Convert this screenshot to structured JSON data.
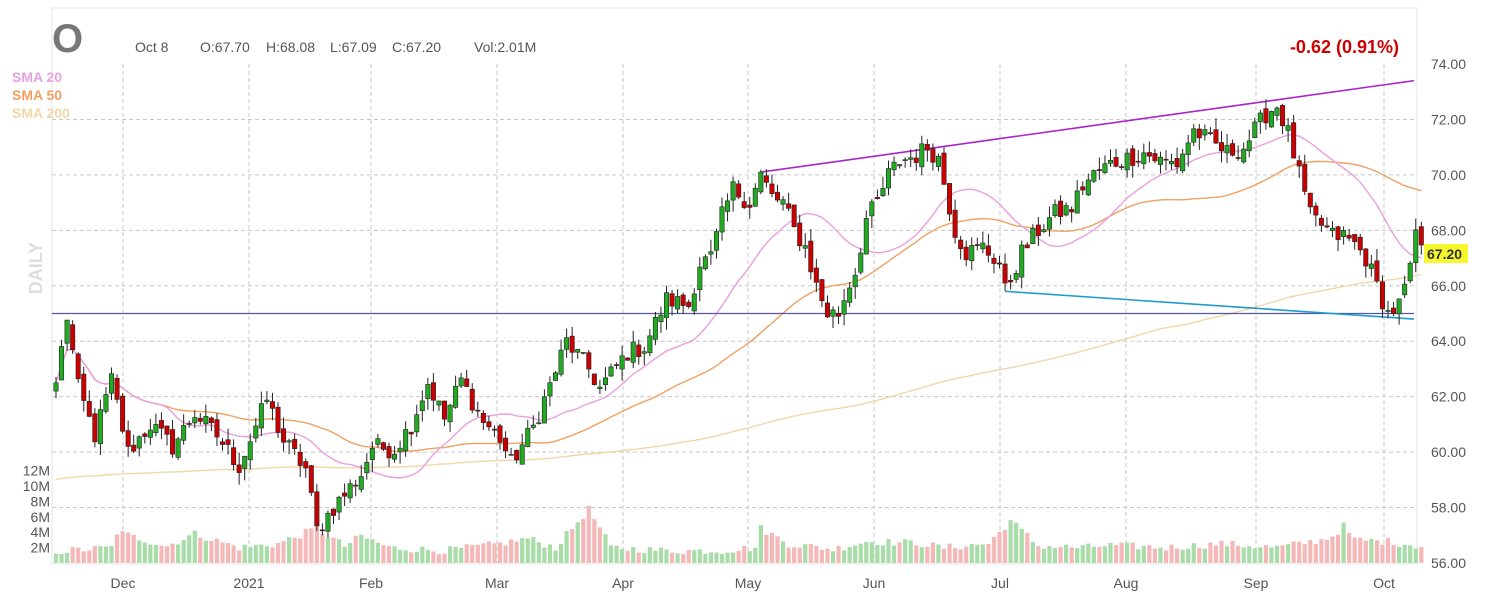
{
  "header": {
    "symbol": "O",
    "date": "Oct 8",
    "open": "O:67.70",
    "high": "H:68.08",
    "low": "L:67.09",
    "close": "C:67.20",
    "volume": "Vol:2.01M",
    "change": "-0.62 (0.91%)",
    "change_color": "#cc0000"
  },
  "period_label": "DAILY",
  "legend": [
    {
      "label": "SMA 20",
      "color": "#e8a0e0"
    },
    {
      "label": "SMA 50",
      "color": "#f0a060"
    },
    {
      "label": "SMA 200",
      "color": "#f0d8a8"
    }
  ],
  "last_price_label": "67.20",
  "chart_data": {
    "type": "candlestick",
    "title": "",
    "xlabel": "",
    "ylabel": "",
    "ylim": [
      56,
      74
    ],
    "y_ticks": [
      "74.00",
      "72.00",
      "70.00",
      "68.00",
      "66.00",
      "64.00",
      "62.00",
      "60.00",
      "58.00",
      "56.00"
    ],
    "x_ticks": [
      "Dec",
      "2021",
      "Feb",
      "Mar",
      "Apr",
      "May",
      "Jun",
      "Jul",
      "Aug",
      "Sep",
      "Oct"
    ],
    "volume_ticks": [
      "12M",
      "10M",
      "8M",
      "6M",
      "4M",
      "2M"
    ],
    "grid": true,
    "colors": {
      "up": "#22aa22",
      "down": "#cc0000",
      "vol_up": "#a8dca8",
      "vol_down": "#f4b8b8"
    },
    "price_keypoints": [
      [
        0,
        62.5
      ],
      [
        2,
        64.9
      ],
      [
        4,
        62.3
      ],
      [
        7,
        60.6
      ],
      [
        10,
        62.6
      ],
      [
        13,
        60.0
      ],
      [
        17,
        61.0
      ],
      [
        21,
        60.2
      ],
      [
        25,
        61.4
      ],
      [
        29,
        60.6
      ],
      [
        33,
        59.5
      ],
      [
        38,
        61.9
      ],
      [
        41,
        60.4
      ],
      [
        45,
        59.4
      ],
      [
        47,
        57.2
      ],
      [
        50,
        58.0
      ],
      [
        55,
        59.2
      ],
      [
        57,
        60.2
      ],
      [
        61,
        60.1
      ],
      [
        64,
        61.0
      ],
      [
        67,
        62.5
      ],
      [
        70,
        61.2
      ],
      [
        73,
        62.6
      ],
      [
        77,
        61.1
      ],
      [
        80,
        60.5
      ],
      [
        82,
        59.6
      ],
      [
        86,
        60.9
      ],
      [
        89,
        62.4
      ],
      [
        92,
        64.0
      ],
      [
        96,
        63.0
      ],
      [
        98,
        62.3
      ],
      [
        103,
        63.6
      ],
      [
        106,
        63.8
      ],
      [
        110,
        65.5
      ],
      [
        114,
        65.3
      ],
      [
        116,
        66.8
      ],
      [
        118,
        67.0
      ],
      [
        120,
        68.5
      ],
      [
        122,
        69.5
      ],
      [
        125,
        69.0
      ],
      [
        127,
        70.0
      ],
      [
        129,
        69.2
      ],
      [
        131,
        69.0
      ],
      [
        133,
        68.0
      ],
      [
        135,
        67.4
      ],
      [
        137,
        66.0
      ],
      [
        139,
        65.0
      ],
      [
        141,
        65.0
      ],
      [
        143,
        66.1
      ],
      [
        144,
        66.5
      ],
      [
        146,
        68.4
      ],
      [
        148,
        69.0
      ],
      [
        150,
        70.0
      ],
      [
        152,
        70.5
      ],
      [
        155,
        70.7
      ],
      [
        157,
        71.0
      ],
      [
        159,
        70.6
      ],
      [
        162,
        68.0
      ],
      [
        164,
        67.2
      ],
      [
        167,
        67.4
      ],
      [
        170,
        66.8
      ],
      [
        171,
        65.8
      ],
      [
        174,
        67.2
      ],
      [
        177,
        68.0
      ],
      [
        180,
        68.6
      ],
      [
        183,
        68.8
      ],
      [
        185,
        69.6
      ],
      [
        187,
        70.0
      ],
      [
        190,
        70.4
      ],
      [
        193,
        70.6
      ],
      [
        196,
        70.8
      ],
      [
        199,
        70.5
      ],
      [
        202,
        70.4
      ],
      [
        205,
        71.6
      ],
      [
        208,
        71.2
      ],
      [
        211,
        70.8
      ],
      [
        214,
        71.0
      ],
      [
        216,
        71.6
      ],
      [
        218,
        72.2
      ],
      [
        220,
        72.5
      ],
      [
        222,
        71.5
      ],
      [
        224,
        70.0
      ],
      [
        226,
        68.5
      ],
      [
        228,
        68.2
      ],
      [
        230,
        67.8
      ],
      [
        232,
        67.8
      ],
      [
        234,
        67.5
      ],
      [
        236,
        67.0
      ],
      [
        238,
        66.0
      ],
      [
        240,
        65.0
      ],
      [
        242,
        65.3
      ],
      [
        244,
        66.5
      ],
      [
        245,
        68.0
      ],
      [
        246,
        67.2
      ]
    ],
    "volume_keypoints": [
      [
        0,
        1.5
      ],
      [
        10,
        2.0
      ],
      [
        11,
        4.0
      ],
      [
        20,
        2.2
      ],
      [
        25,
        3.8
      ],
      [
        33,
        2.0
      ],
      [
        40,
        2.5
      ],
      [
        47,
        4.5
      ],
      [
        52,
        2.2
      ],
      [
        55,
        3.5
      ],
      [
        60,
        2.0
      ],
      [
        70,
        1.6
      ],
      [
        80,
        2.5
      ],
      [
        85,
        3.2
      ],
      [
        90,
        2.0
      ],
      [
        96,
        7.0
      ],
      [
        100,
        2.0
      ],
      [
        110,
        1.6
      ],
      [
        120,
        1.6
      ],
      [
        126,
        2.0
      ],
      [
        127,
        4.5
      ],
      [
        132,
        2.5
      ],
      [
        140,
        1.8
      ],
      [
        146,
        2.8
      ],
      [
        155,
        2.6
      ],
      [
        160,
        2.0
      ],
      [
        168,
        2.5
      ],
      [
        170,
        4.0
      ],
      [
        172,
        5.5
      ],
      [
        177,
        2.2
      ],
      [
        185,
        2.0
      ],
      [
        190,
        2.3
      ],
      [
        200,
        2.0
      ],
      [
        210,
        2.5
      ],
      [
        220,
        2.0
      ],
      [
        228,
        3.0
      ],
      [
        230,
        3.5
      ],
      [
        232,
        4.8
      ],
      [
        234,
        3.0
      ],
      [
        240,
        2.8
      ],
      [
        246,
        2.2
      ]
    ]
  }
}
